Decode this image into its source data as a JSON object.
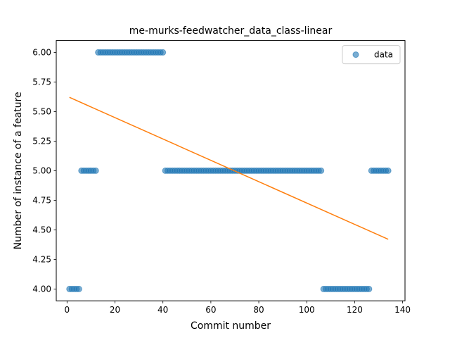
{
  "chart_data": {
    "type": "scatter",
    "title": "me-murks-feedwatcher_data_class-linear",
    "xlabel": "Commit number",
    "ylabel": "Number of instance of a feature",
    "xlim": [
      -4.5,
      141
    ],
    "ylim": [
      3.9,
      6.1
    ],
    "xticks": [
      0,
      20,
      40,
      60,
      80,
      100,
      120,
      140
    ],
    "yticks": [
      4.0,
      4.25,
      4.5,
      4.75,
      5.0,
      5.25,
      5.5,
      5.75,
      6.0
    ],
    "xtick_labels": [
      "0",
      "20",
      "40",
      "60",
      "80",
      "100",
      "120",
      "140"
    ],
    "ytick_labels": [
      "4.00",
      "4.25",
      "4.50",
      "4.75",
      "5.00",
      "5.25",
      "5.50",
      "5.75",
      "6.00"
    ],
    "grid": false,
    "legend": {
      "entries": [
        "data"
      ],
      "placement": "top-right"
    },
    "series": [
      {
        "name": "data",
        "kind": "scatter",
        "color": "#1f77b4",
        "segments": [
          {
            "x_start": 1,
            "x_end": 5,
            "y": 4
          },
          {
            "x_start": 6,
            "x_end": 12,
            "y": 5
          },
          {
            "x_start": 13,
            "x_end": 40,
            "y": 6
          },
          {
            "x_start": 41,
            "x_end": 106,
            "y": 5
          },
          {
            "x_start": 107,
            "x_end": 126,
            "y": 4
          },
          {
            "x_start": 127,
            "x_end": 134,
            "y": 5
          }
        ]
      },
      {
        "kind": "line",
        "color": "#ff7f0e",
        "x": [
          1,
          134
        ],
        "y": [
          5.62,
          4.42
        ]
      }
    ]
  }
}
